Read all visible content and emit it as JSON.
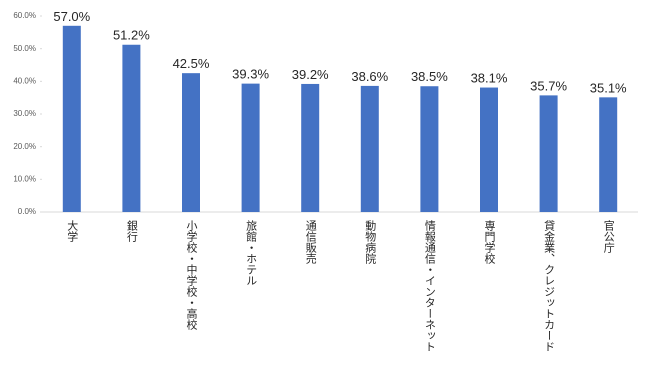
{
  "chart_data": {
    "type": "bar",
    "categories": [
      "大学",
      "銀行",
      "小学校・中学校・高校",
      "旅館・ホテル",
      "通信販売",
      "動物病院",
      "情報通信・インターネット",
      "専門学校",
      "貸金業、クレジットカード",
      "官公庁"
    ],
    "values": [
      57.0,
      51.2,
      42.5,
      39.3,
      39.2,
      38.6,
      38.5,
      38.1,
      35.7,
      35.1
    ],
    "value_labels": [
      "57.0%",
      "51.2%",
      "42.5%",
      "39.3%",
      "39.2%",
      "38.6%",
      "38.5%",
      "38.1%",
      "35.7%",
      "35.1%"
    ],
    "color": "#4472c4",
    "ylim": [
      0,
      60
    ],
    "yticks": [
      {
        "value": 0,
        "label": "0.0%"
      },
      {
        "value": 10,
        "label": "10.0%"
      },
      {
        "value": 20,
        "label": "20.0%"
      },
      {
        "value": 30,
        "label": "30.0%"
      },
      {
        "value": 40,
        "label": "40.0%"
      },
      {
        "value": 50,
        "label": "50.0%"
      },
      {
        "value": 60,
        "label": "60.0%"
      }
    ],
    "grid": false
  }
}
